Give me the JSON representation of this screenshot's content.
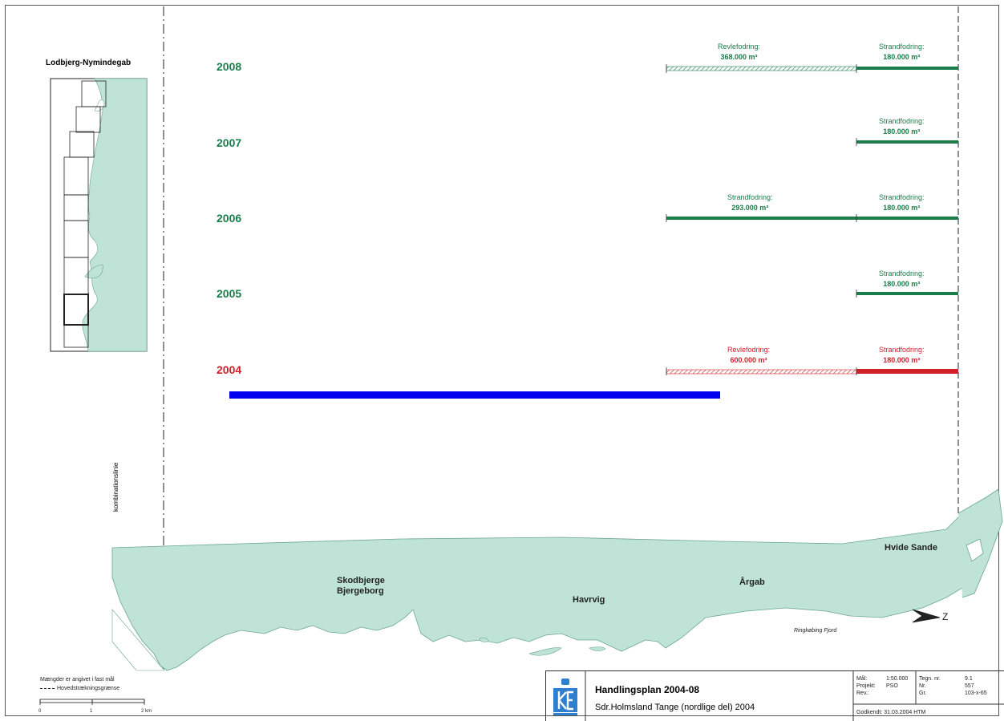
{
  "colors": {
    "green": "#1a7d4a",
    "red": "#d0202a",
    "blue": "#0000ee",
    "land": "#bfe3d6",
    "land_stroke": "#6aa690"
  },
  "overview": {
    "title": "Lodbjerg-Nymindegab"
  },
  "kombinationslinie": "kombinationslinie",
  "years": [
    {
      "year": "2008",
      "color": "green",
      "left_label": "Revlefodring:",
      "left_value": "368.000 m³",
      "right_label": "Strandfodring:",
      "right_value": "180.000 m³"
    },
    {
      "year": "2007",
      "color": "green",
      "left_label": "",
      "left_value": "",
      "right_label": "Strandfodring:",
      "right_value": "180.000 m³"
    },
    {
      "year": "2006",
      "color": "green",
      "left_label": "Strandfodring:",
      "left_value": "293.000 m³",
      "right_label": "Strandfodring:",
      "right_value": "180.000 m³"
    },
    {
      "year": "2005",
      "color": "green",
      "left_label": "",
      "left_value": "",
      "right_label": "Strandfodring:",
      "right_value": "180.000 m³"
    },
    {
      "year": "2004",
      "color": "red",
      "left_label": "Revlefodring:",
      "left_value": "600.000 m³",
      "right_label": "Strandfodring:",
      "right_value": "180.000 m³"
    }
  ],
  "places": {
    "skodbjerge_line1": "Skodbjerge",
    "skodbjerge_line2": "Bjergeborg",
    "havrvig": "Havrvig",
    "argab": "Årgab",
    "hvide_sande": "Hvide Sande",
    "ringkobing_fjord": "Ringkøbing Fjord"
  },
  "north_label": "Z",
  "legend": {
    "line1": "Mængder er angivet i fast mål",
    "line2": "Hovedstrækningsgrænse",
    "scale_0": "0",
    "scale_1": "1",
    "scale_2": "2 km"
  },
  "titleblock": {
    "title": "Handlingsplan 2004-08",
    "subtitle": "Sdr.Holmsland Tange (nordlige del) 2004",
    "mal_label": "Mål:",
    "mal_value": "1:50.000",
    "projekt_label": "Projekt:",
    "projekt_value": "PSO",
    "rev_label": "Rev.:",
    "rev_value": "",
    "tegn_label": "Tegn. nr.",
    "tegn_value": "9.1",
    "nr_label": "Nr.",
    "nr_value": "557",
    "gr_label": "Gr.",
    "gr_value": "103-x-65",
    "godkendt": "Godkendt: 31.03.2004 HTM"
  }
}
